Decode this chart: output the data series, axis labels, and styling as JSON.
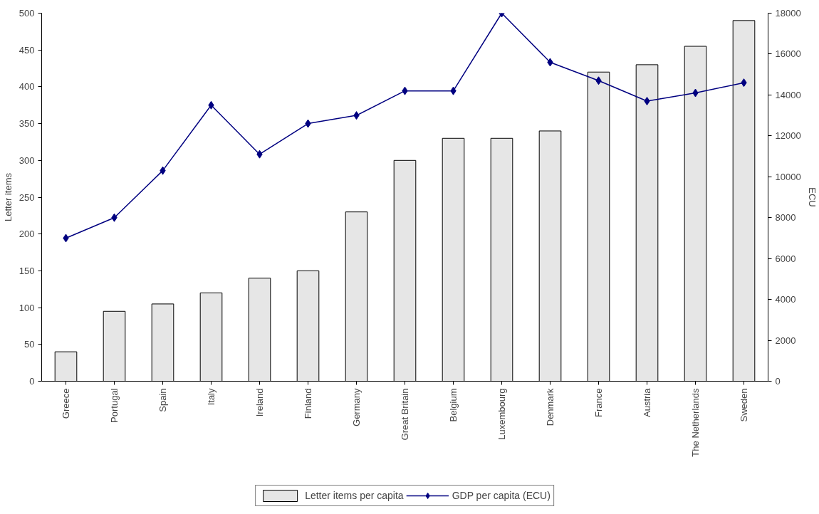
{
  "chart_data": {
    "type": "bar",
    "categories": [
      "Greece",
      "Portugal",
      "Spain",
      "Italy",
      "Ireland",
      "Finland",
      "Germany",
      "Great Britain",
      "Belgium",
      "Luxembourg",
      "Denmark",
      "France",
      "Austria",
      "The Netherlands",
      "Sweden"
    ],
    "series": [
      {
        "name": "Letter items per capita",
        "color": "#e6e6e6",
        "values": [
          40,
          95,
          105,
          120,
          140,
          150,
          230,
          300,
          330,
          330,
          340,
          420,
          430,
          455,
          490
        ]
      },
      {
        "name": "GDP per capita (ECU)",
        "type": "line",
        "axis": "y2",
        "color": "#000080",
        "marker": "diamond",
        "values": [
          7000,
          8000,
          10300,
          13500,
          11100,
          12600,
          13000,
          14200,
          14200,
          18000,
          15600,
          14700,
          13700,
          14100,
          14600
        ]
      }
    ],
    "ylabel": "Letter items",
    "y2label": "ECU",
    "ylim": [
      0,
      500
    ],
    "yticks": [
      0,
      50,
      100,
      150,
      200,
      250,
      300,
      350,
      400,
      450,
      500
    ],
    "y2lim": [
      0,
      18000
    ],
    "y2ticks": [
      0,
      2000,
      4000,
      6000,
      8000,
      10000,
      12000,
      14000,
      16000,
      18000
    ],
    "grid": false,
    "legend": "bottom"
  }
}
